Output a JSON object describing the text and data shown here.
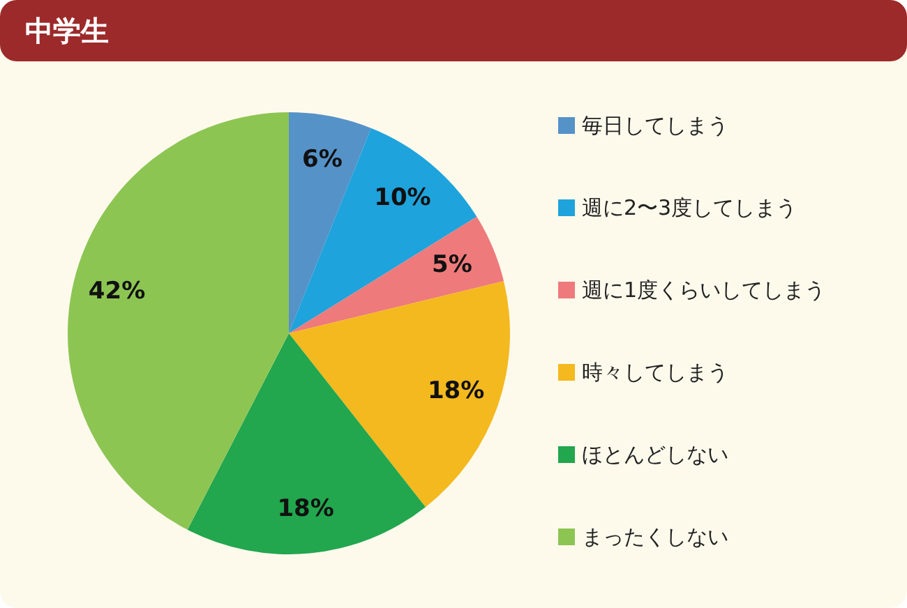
{
  "chart_data": {
    "type": "pie",
    "title": "中学生",
    "categories": [
      "毎日してしまう",
      "週に2〜3度してしまう",
      "週に1度くらいしてしまう",
      "時々してしまう",
      "ほとんどしない",
      "まったくしない"
    ],
    "values": [
      6,
      10,
      5,
      18,
      18,
      42
    ],
    "value_labels": [
      "6%",
      "10%",
      "5%",
      "18%",
      "18%",
      "42%"
    ],
    "colors": [
      "#5592c8",
      "#1fa3dc",
      "#ee7a7b",
      "#f4b91e",
      "#22a64e",
      "#8dc553"
    ],
    "legend": "right"
  }
}
